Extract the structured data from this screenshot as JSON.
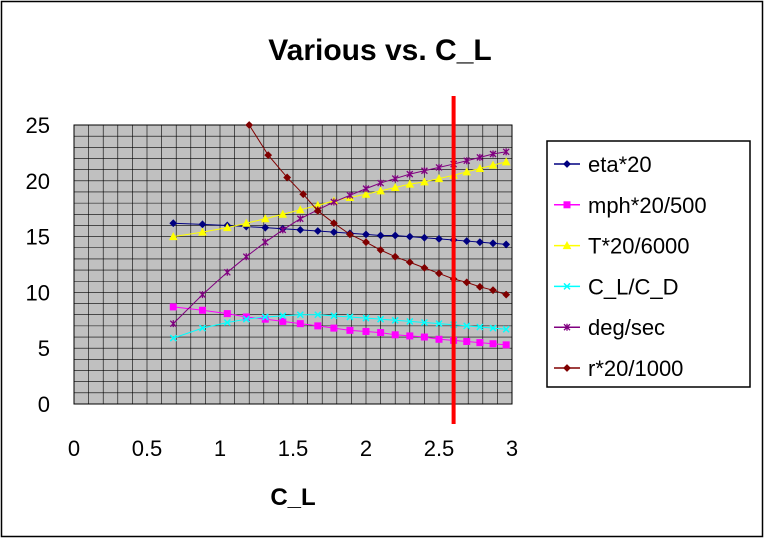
{
  "chart_data": {
    "type": "line",
    "title": "Various vs. C_L",
    "xlabel": "C_L",
    "ylabel": "",
    "xlim": [
      0,
      3
    ],
    "ylim": [
      0,
      25
    ],
    "xticks": [
      0,
      0.5,
      1,
      1.5,
      2,
      2.5,
      3
    ],
    "xtick_labels": [
      "0",
      "0.5",
      "1",
      "1.5",
      "2",
      "2.5",
      "3"
    ],
    "yticks": [
      0,
      5,
      10,
      15,
      20,
      25
    ],
    "ytick_labels": [
      "0",
      "5",
      "10",
      "15",
      "20",
      "25"
    ],
    "grid": true,
    "legend_position": "right",
    "plot_background": "#c0c0c0",
    "grid_color": "#000000",
    "vertical_reference_line": {
      "x": 2.6,
      "color": "#ff0000"
    },
    "series": [
      {
        "name": "eta*20",
        "color": "#000080",
        "marker": "diamond",
        "x": [
          0.68,
          0.88,
          1.05,
          1.18,
          1.31,
          1.43,
          1.55,
          1.67,
          1.78,
          1.89,
          2.0,
          2.1,
          2.2,
          2.3,
          2.4,
          2.5,
          2.6,
          2.69,
          2.78,
          2.87,
          2.96
        ],
        "y": [
          16.2,
          16.1,
          16.0,
          15.9,
          15.8,
          15.7,
          15.6,
          15.5,
          15.4,
          15.3,
          15.2,
          15.1,
          15.1,
          15.0,
          14.9,
          14.8,
          14.7,
          14.6,
          14.5,
          14.4,
          14.3
        ]
      },
      {
        "name": "mph*20/500",
        "color": "#ff00ff",
        "marker": "square",
        "x": [
          0.68,
          0.88,
          1.05,
          1.18,
          1.31,
          1.43,
          1.55,
          1.67,
          1.78,
          1.89,
          2.0,
          2.1,
          2.2,
          2.3,
          2.4,
          2.5,
          2.6,
          2.69,
          2.78,
          2.87,
          2.96
        ],
        "y": [
          8.7,
          8.4,
          8.1,
          7.8,
          7.6,
          7.4,
          7.2,
          7.0,
          6.8,
          6.6,
          6.5,
          6.4,
          6.2,
          6.1,
          6.0,
          5.8,
          5.7,
          5.6,
          5.5,
          5.4,
          5.3
        ]
      },
      {
        "name": "T*20/6000",
        "color": "#ffff00",
        "marker": "triangle",
        "x": [
          0.68,
          0.88,
          1.05,
          1.18,
          1.31,
          1.43,
          1.55,
          1.67,
          1.78,
          1.89,
          2.0,
          2.1,
          2.2,
          2.3,
          2.4,
          2.5,
          2.6,
          2.69,
          2.78,
          2.87,
          2.96
        ],
        "y": [
          15.0,
          15.4,
          15.8,
          16.2,
          16.6,
          17.0,
          17.4,
          17.8,
          18.2,
          18.5,
          18.8,
          19.1,
          19.4,
          19.7,
          19.9,
          20.2,
          20.5,
          20.8,
          21.1,
          21.4,
          21.7
        ]
      },
      {
        "name": "C_L/C_D",
        "color": "#00ffff",
        "marker": "x",
        "x": [
          0.68,
          0.88,
          1.05,
          1.18,
          1.31,
          1.43,
          1.55,
          1.67,
          1.78,
          1.89,
          2.0,
          2.1,
          2.2,
          2.3,
          2.4,
          2.5,
          2.6,
          2.69,
          2.78,
          2.87,
          2.96
        ],
        "y": [
          5.9,
          6.8,
          7.3,
          7.6,
          7.8,
          7.9,
          8.0,
          8.0,
          7.9,
          7.8,
          7.7,
          7.6,
          7.5,
          7.4,
          7.3,
          7.2,
          7.1,
          7.0,
          6.9,
          6.8,
          6.7
        ]
      },
      {
        "name": "deg/sec",
        "color": "#800080",
        "marker": "star",
        "x": [
          0.68,
          0.88,
          1.05,
          1.18,
          1.31,
          1.43,
          1.55,
          1.67,
          1.78,
          1.89,
          2.0,
          2.1,
          2.2,
          2.3,
          2.4,
          2.5,
          2.6,
          2.69,
          2.78,
          2.87,
          2.96
        ],
        "y": [
          7.2,
          9.8,
          11.8,
          13.2,
          14.5,
          15.6,
          16.6,
          17.4,
          18.1,
          18.7,
          19.3,
          19.8,
          20.2,
          20.6,
          20.9,
          21.2,
          21.5,
          21.8,
          22.1,
          22.4,
          22.6
        ]
      },
      {
        "name": "r*20/1000",
        "color": "#800000",
        "marker": "diamond",
        "x": [
          1.2,
          1.33,
          1.46,
          1.57,
          1.67,
          1.78,
          1.89,
          2.0,
          2.1,
          2.2,
          2.3,
          2.4,
          2.5,
          2.6,
          2.69,
          2.78,
          2.87,
          2.96
        ],
        "y": [
          25.0,
          22.3,
          20.3,
          18.8,
          17.3,
          16.2,
          15.2,
          14.5,
          13.8,
          13.2,
          12.7,
          12.2,
          11.7,
          11.2,
          10.9,
          10.5,
          10.2,
          9.8
        ]
      }
    ]
  }
}
